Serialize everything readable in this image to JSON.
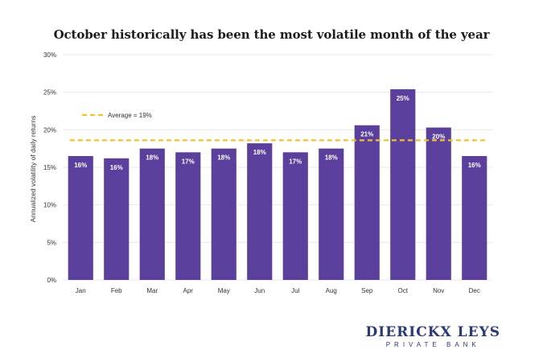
{
  "chart_data": {
    "type": "bar",
    "title": "October historically has been the most volatile month of the year",
    "xlabel": "",
    "ylabel": "Annualized volatility of daily returns",
    "categories": [
      "Jan",
      "Feb",
      "Mar",
      "Apr",
      "May",
      "Jun",
      "Jul",
      "Aug",
      "Sep",
      "Oct",
      "Nov",
      "Dec"
    ],
    "values": [
      16.5,
      16.2,
      17.5,
      17.0,
      17.5,
      18.2,
      17.0,
      17.5,
      20.6,
      25.4,
      20.3,
      16.5
    ],
    "data_labels": [
      "16%",
      "16%",
      "18%",
      "17%",
      "18%",
      "18%",
      "17%",
      "18%",
      "21%",
      "25%",
      "20%",
      "16%"
    ],
    "ylim": [
      0,
      30
    ],
    "yticks": [
      0,
      5,
      10,
      15,
      20,
      25,
      30
    ],
    "ytick_labels": [
      "0%",
      "5%",
      "10%",
      "15%",
      "20%",
      "25%",
      "30%"
    ],
    "grid": true,
    "average": {
      "label": "Average = 19%",
      "value": 18.6
    },
    "legend_position": "top-left",
    "colors": {
      "bar": "#5b3f9c",
      "average_line": "#f2c12e",
      "grid": "#e8e8e8",
      "label": "#ffffff"
    }
  },
  "branding": {
    "name": "DIERICKX LEYS",
    "subtitle": "PRIVATE BANK"
  }
}
